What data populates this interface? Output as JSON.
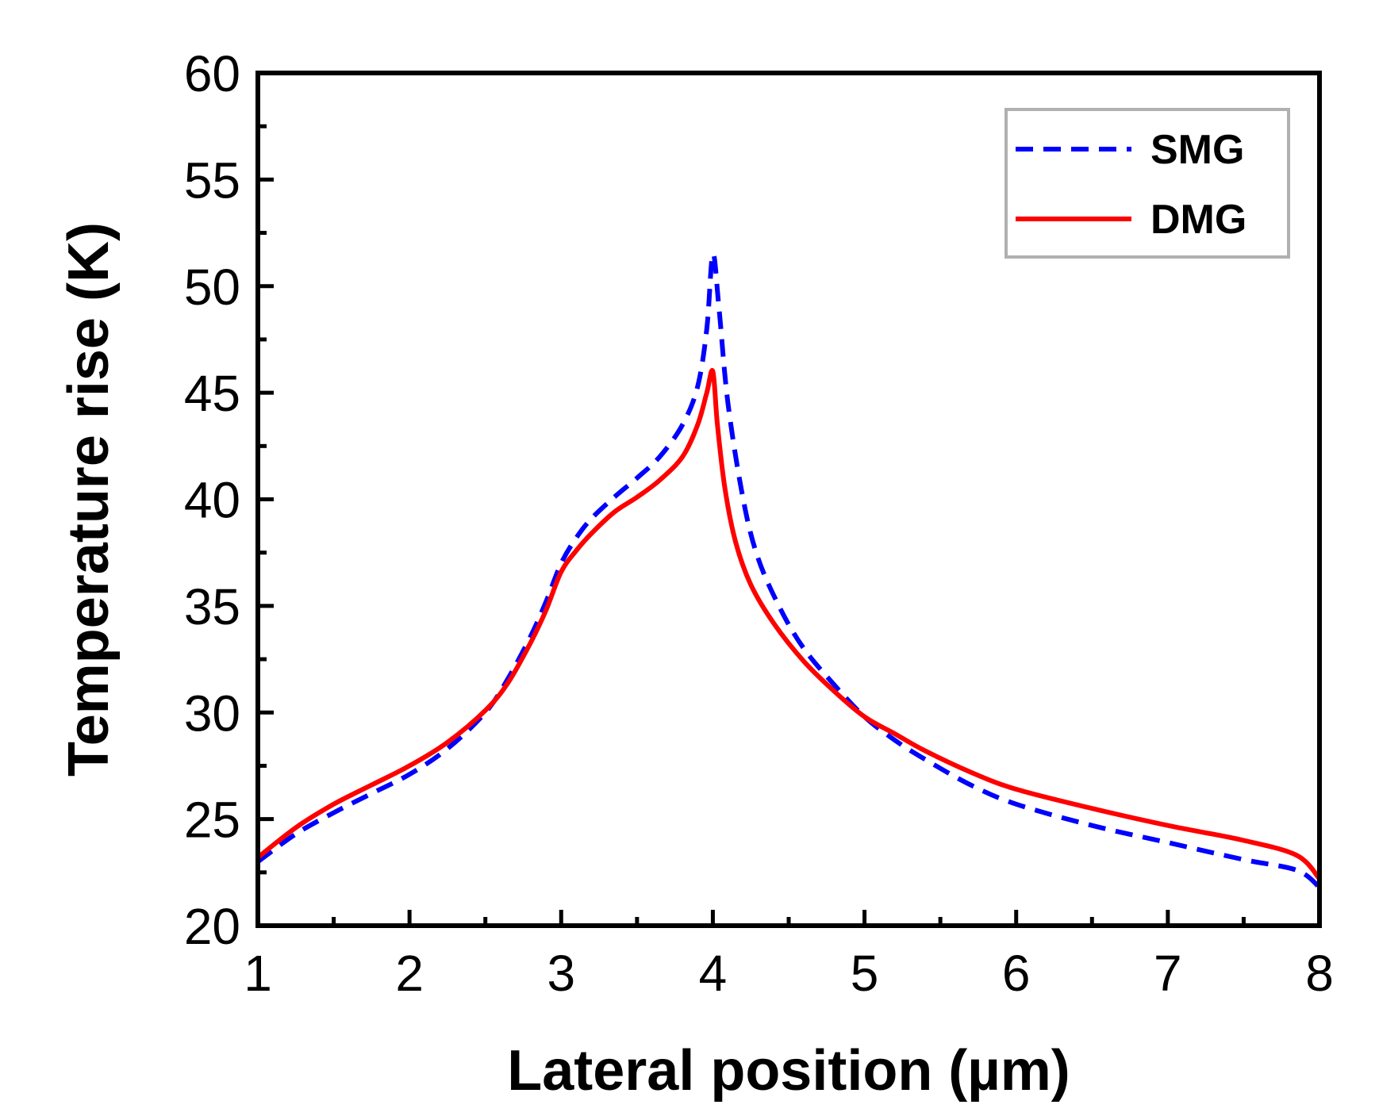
{
  "chart_data": {
    "type": "line",
    "title": "",
    "xlabel": "Lateral position (µm)",
    "ylabel": "Temperature rise (K)",
    "xlim": [
      1,
      8
    ],
    "ylim": [
      20,
      60
    ],
    "xticks": [
      1,
      2,
      3,
      4,
      5,
      6,
      7,
      8
    ],
    "yticks": [
      20,
      25,
      30,
      35,
      40,
      45,
      50,
      55,
      60
    ],
    "grid": false,
    "legend": "top-right",
    "series": [
      {
        "name": "SMG",
        "color": "#0000ff",
        "style": "dashed",
        "x": [
          1.0,
          1.25,
          1.5,
          1.75,
          2.0,
          2.25,
          2.5,
          2.65,
          2.8,
          2.9,
          3.0,
          3.1,
          3.2,
          3.35,
          3.5,
          3.65,
          3.8,
          3.9,
          3.96,
          4.0,
          4.04,
          4.1,
          4.2,
          4.3,
          4.45,
          4.6,
          4.8,
          5.0,
          5.2,
          5.4,
          5.7,
          6.0,
          6.5,
          7.0,
          7.5,
          7.85,
          8.0
        ],
        "y": [
          23.0,
          24.3,
          25.3,
          26.2,
          27.1,
          28.3,
          30.0,
          31.6,
          33.6,
          35.2,
          37.0,
          38.2,
          39.1,
          40.1,
          41.0,
          42.0,
          43.5,
          45.3,
          48.0,
          51.5,
          49.0,
          44.5,
          40.0,
          37.2,
          34.8,
          33.0,
          31.3,
          29.8,
          28.7,
          27.8,
          26.6,
          25.7,
          24.7,
          23.9,
          23.1,
          22.6,
          21.8
        ]
      },
      {
        "name": "DMG",
        "color": "#ff0000",
        "style": "solid",
        "x": [
          1.0,
          1.25,
          1.5,
          1.75,
          2.0,
          2.25,
          2.5,
          2.65,
          2.8,
          2.9,
          3.0,
          3.1,
          3.2,
          3.35,
          3.5,
          3.65,
          3.8,
          3.9,
          3.96,
          4.0,
          4.03,
          4.08,
          4.15,
          4.25,
          4.4,
          4.6,
          4.8,
          5.0,
          5.2,
          5.4,
          5.7,
          6.0,
          6.5,
          7.0,
          7.5,
          7.85,
          8.0
        ],
        "y": [
          23.2,
          24.6,
          25.7,
          26.6,
          27.5,
          28.6,
          30.1,
          31.4,
          33.3,
          34.8,
          36.6,
          37.6,
          38.4,
          39.4,
          40.1,
          40.9,
          42.0,
          43.5,
          45.0,
          46.0,
          43.5,
          40.5,
          38.0,
          36.0,
          34.2,
          32.4,
          31.0,
          29.8,
          29.0,
          28.2,
          27.2,
          26.4,
          25.5,
          24.7,
          24.0,
          23.3,
          22.2
        ]
      }
    ]
  }
}
